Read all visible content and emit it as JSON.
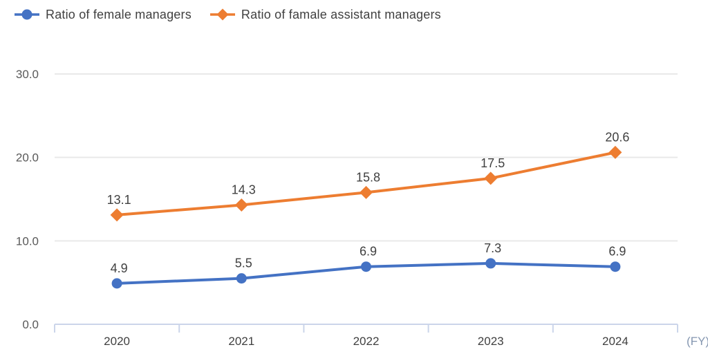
{
  "chart_data": {
    "type": "line",
    "categories": [
      "2020",
      "2021",
      "2022",
      "2023",
      "2024"
    ],
    "series": [
      {
        "name": "Ratio of female managers",
        "marker": "circle",
        "color": "#4472C4",
        "values": [
          4.9,
          5.5,
          6.9,
          7.3,
          6.9
        ]
      },
      {
        "name": "Ratio of famale assistant managers",
        "marker": "diamond",
        "color": "#ED7D31",
        "values": [
          13.1,
          14.3,
          15.8,
          17.5,
          20.6
        ]
      }
    ],
    "data_labels": [
      "4.9",
      "5.5",
      "6.9",
      "7.3",
      "6.9",
      "13.1",
      "14.3",
      "15.8",
      "17.5",
      "20.6"
    ],
    "title": "",
    "xlabel": "(FY)",
    "ylabel": "",
    "ylim": [
      0,
      30
    ],
    "y_ticks": [
      0,
      10,
      20,
      30
    ],
    "y_tick_labels": [
      "0.0",
      "10.0",
      "20.0",
      "30.0"
    ],
    "grid": "horizontal",
    "legend_position": "top-left",
    "show_point_labels": true
  },
  "colors": {
    "series_blue": "#4472C4",
    "series_orange": "#ED7D31",
    "gridline": "#E9E9E9",
    "axis_line": "#CBD5EA",
    "data_label_text": "#404040",
    "y_tick_text": "#595959",
    "x_tick_text": "#3F3F3F",
    "fy_label_text": "#8496B0",
    "background": "#FFFFFF"
  }
}
